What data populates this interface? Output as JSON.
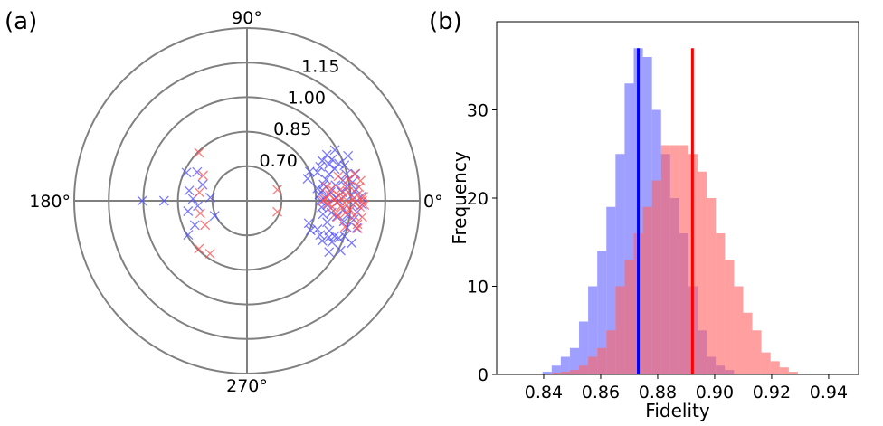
{
  "figure": {
    "panel_a_label": "(a)",
    "panel_b_label": "(b)"
  },
  "chart_data": [
    {
      "type": "scatter",
      "subtype": "polar",
      "title": "",
      "radial_axis": {
        "origin": 0.55,
        "max": 1.3,
        "ring_values": [
          0.7,
          0.85,
          1.0,
          1.15,
          1.3
        ],
        "ring_labels": [
          "0.70",
          "0.85",
          "1.00",
          "1.15"
        ]
      },
      "angle_labels": [
        {
          "deg": 0,
          "label": "0°"
        },
        {
          "deg": 90,
          "label": "90°"
        },
        {
          "deg": 180,
          "label": "180°"
        },
        {
          "deg": 270,
          "label": "270°"
        }
      ],
      "marker": "x",
      "series": [
        {
          "name": "blue",
          "color": "#4f4fff",
          "points": [
            [
              1.005,
              180
            ],
            [
              0.91,
              180
            ],
            [
              0.785,
              178
            ],
            [
              0.765,
              186
            ],
            [
              0.755,
              160
            ],
            [
              0.71,
              175
            ],
            [
              0.705,
              205
            ],
            [
              0.8,
              150
            ],
            [
              0.805,
              170
            ],
            [
              0.81,
              190
            ],
            [
              0.8,
              205
            ],
            [
              0.84,
              155
            ],
            [
              0.845,
              210
            ],
            [
              0.86,
              10
            ],
            [
              0.865,
              5
            ],
            [
              0.87,
              0
            ],
            [
              0.875,
              355
            ],
            [
              0.88,
              8
            ],
            [
              0.885,
              350
            ],
            [
              0.89,
              12
            ],
            [
              0.895,
              3
            ],
            [
              0.9,
              357
            ],
            [
              0.905,
              15
            ],
            [
              0.91,
              345
            ],
            [
              0.915,
              6
            ],
            [
              0.92,
              352
            ],
            [
              0.925,
              18
            ],
            [
              0.93,
              340
            ],
            [
              0.935,
              2
            ],
            [
              0.94,
              10
            ],
            [
              0.945,
              350
            ],
            [
              0.95,
              0
            ],
            [
              0.955,
              20
            ],
            [
              0.96,
              338
            ],
            [
              0.965,
              5
            ],
            [
              0.97,
              355
            ],
            [
              0.975,
              12
            ],
            [
              0.98,
              348
            ],
            [
              0.985,
              8
            ],
            [
              0.99,
              352
            ],
            [
              0.995,
              15
            ],
            [
              1.0,
              345
            ],
            [
              1.005,
              3
            ],
            [
              1.01,
              358
            ],
            [
              1.015,
              10
            ],
            [
              1.02,
              350
            ],
            [
              1.025,
              6
            ],
            [
              1.03,
              354
            ],
            [
              1.035,
              14
            ],
            [
              1.04,
              346
            ],
            [
              1.045,
              2
            ],
            [
              1.05,
              358
            ],
            [
              0.88,
              22
            ],
            [
              0.9,
              25
            ],
            [
              0.92,
              28
            ],
            [
              0.94,
              24
            ],
            [
              0.96,
              26
            ],
            [
              0.98,
              22
            ],
            [
              1.0,
              20
            ],
            [
              0.88,
              338
            ],
            [
              0.9,
              335
            ],
            [
              0.92,
              332
            ],
            [
              0.94,
              336
            ],
            [
              0.96,
              334
            ],
            [
              0.98,
              338
            ],
            [
              1.0,
              340
            ],
            [
              0.95,
              30
            ],
            [
              0.97,
              328
            ],
            [
              0.99,
              30
            ],
            [
              1.01,
              332
            ],
            [
              1.03,
              24
            ],
            [
              1.04,
              338
            ],
            [
              0.83,
              20
            ],
            [
              0.835,
              340
            ],
            [
              0.85,
              25
            ],
            [
              0.855,
              335
            ]
          ]
        },
        {
          "name": "red",
          "color": "#ff4d4d",
          "points": [
            [
              0.845,
              135
            ],
            [
              0.77,
              150
            ],
            [
              0.76,
              170
            ],
            [
              0.76,
              195
            ],
            [
              0.76,
              210
            ],
            [
              0.845,
              225
            ],
            [
              0.83,
              235
            ],
            [
              0.69,
              20
            ],
            [
              0.69,
              340
            ],
            [
              0.88,
              0
            ],
            [
              0.89,
              2
            ],
            [
              0.9,
              358
            ],
            [
              0.91,
              4
            ],
            [
              0.92,
              356
            ],
            [
              0.93,
              1
            ],
            [
              0.94,
              359
            ],
            [
              0.95,
              3
            ],
            [
              0.96,
              357
            ],
            [
              0.97,
              2
            ],
            [
              0.98,
              358
            ],
            [
              0.99,
              5
            ],
            [
              1.0,
              355
            ],
            [
              1.01,
              1
            ],
            [
              1.02,
              359
            ],
            [
              1.03,
              3
            ],
            [
              1.04,
              357
            ],
            [
              1.05,
              0
            ],
            [
              1.055,
              2
            ],
            [
              1.06,
              358
            ],
            [
              0.92,
              8
            ],
            [
              0.94,
              352
            ],
            [
              0.96,
              7
            ],
            [
              0.98,
              353
            ],
            [
              1.0,
              8
            ],
            [
              1.02,
              352
            ],
            [
              1.04,
              7
            ],
            [
              0.9,
              10
            ],
            [
              0.95,
              350
            ],
            [
              1.0,
              12
            ],
            [
              1.04,
              348
            ],
            [
              1.05,
              10
            ],
            [
              1.055,
              352
            ],
            [
              0.96,
              15
            ],
            [
              0.99,
              345
            ],
            [
              1.03,
              14
            ],
            [
              1.045,
              346
            ]
          ]
        }
      ]
    },
    {
      "type": "bar",
      "subtype": "histogram",
      "title": "",
      "xlabel": "Fidelity",
      "ylabel": "Frequency",
      "xlim": [
        0.8235,
        0.9505
      ],
      "ylim": [
        0,
        40
      ],
      "xticks": [
        0.84,
        0.86,
        0.88,
        0.9,
        0.92,
        0.94
      ],
      "xtick_labels": [
        "0.84",
        "0.86",
        "0.88",
        "0.90",
        "0.92",
        "0.94"
      ],
      "yticks": [
        0,
        10,
        20,
        30
      ],
      "ytick_labels": [
        "0",
        "10",
        "20",
        "30"
      ],
      "bin_width": 0.0032,
      "series": [
        {
          "name": "blue",
          "color": "#6464ff",
          "opacity": 0.62,
          "bin_edges_start": 0.8396,
          "counts": [
            0.3,
            1,
            2,
            3,
            6,
            10,
            14,
            19,
            25,
            33,
            37,
            36,
            30,
            25,
            20,
            16,
            10,
            5,
            2,
            1,
            0.5
          ],
          "mean": 0.8732
        },
        {
          "name": "red",
          "color": "#ff6464",
          "opacity": 0.62,
          "bin_edges_start": 0.8396,
          "counts": [
            0.1,
            0.2,
            0.3,
            0.5,
            1,
            2,
            3,
            5,
            10,
            13,
            16,
            19,
            22,
            26,
            26,
            26,
            25,
            23,
            20,
            16,
            13,
            10,
            7,
            5,
            2.5,
            1.5,
            0.8,
            0.3
          ],
          "mean": 0.8922
        }
      ],
      "mean_line_top": 37
    }
  ]
}
